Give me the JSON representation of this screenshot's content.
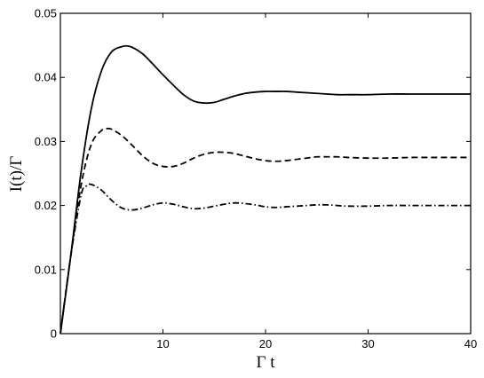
{
  "chart_data": {
    "type": "line",
    "xlabel": "Γ t",
    "ylabel": "I(t)/Γ",
    "xlim": [
      0,
      40
    ],
    "ylim": [
      0,
      0.05
    ],
    "xticks": [
      "10",
      "20",
      "30",
      "40"
    ],
    "yticks": [
      "0",
      "0.01",
      "0.02",
      "0.03",
      "0.04",
      "0.05"
    ],
    "grid": false,
    "legend": "none",
    "series": [
      {
        "style": "solid",
        "x": [
          0,
          1,
          2,
          3,
          4,
          5,
          6,
          6.5,
          7,
          8,
          9,
          10,
          11,
          12,
          13,
          14,
          15,
          16,
          17,
          18,
          19,
          20,
          21,
          22,
          23,
          24,
          25,
          26,
          27,
          28,
          29,
          30,
          32,
          34,
          36,
          38,
          40
        ],
        "y": [
          0,
          0.012,
          0.025,
          0.035,
          0.041,
          0.044,
          0.0448,
          0.0449,
          0.0447,
          0.0437,
          0.0421,
          0.0404,
          0.0388,
          0.0373,
          0.0363,
          0.036,
          0.0361,
          0.0366,
          0.0371,
          0.0375,
          0.0377,
          0.0378,
          0.0378,
          0.0378,
          0.0377,
          0.0376,
          0.0375,
          0.0374,
          0.0373,
          0.0373,
          0.0373,
          0.0373,
          0.0374,
          0.0374,
          0.0374,
          0.0374,
          0.0374
        ]
      },
      {
        "style": "dashed",
        "x": [
          0,
          1,
          2,
          3,
          4,
          4.5,
          5,
          6,
          7,
          8,
          9,
          10,
          11,
          12,
          13,
          14,
          15,
          16,
          17,
          18,
          19,
          20,
          21,
          22,
          23,
          24,
          25,
          26,
          27,
          28,
          30,
          32,
          34,
          36,
          38,
          40
        ],
        "y": [
          0,
          0.012,
          0.023,
          0.0295,
          0.0317,
          0.032,
          0.0319,
          0.0309,
          0.0294,
          0.0278,
          0.0266,
          0.0261,
          0.0261,
          0.0266,
          0.0274,
          0.028,
          0.0283,
          0.0283,
          0.0281,
          0.0277,
          0.0273,
          0.027,
          0.0269,
          0.027,
          0.0272,
          0.0274,
          0.0276,
          0.0276,
          0.0276,
          0.0275,
          0.0274,
          0.0274,
          0.0275,
          0.0275,
          0.0275,
          0.0275
        ]
      },
      {
        "style": "dash-dot",
        "x": [
          0,
          1,
          2,
          2.5,
          3,
          4,
          5,
          6,
          7,
          8,
          9,
          10,
          11,
          12,
          13,
          14,
          15,
          16,
          17,
          18,
          19,
          20,
          21,
          22,
          23,
          24,
          25,
          26,
          27,
          28,
          30,
          32,
          34,
          36,
          38,
          40
        ],
        "y": [
          0,
          0.012,
          0.0215,
          0.023,
          0.0233,
          0.0224,
          0.0208,
          0.0196,
          0.0193,
          0.0196,
          0.0201,
          0.0204,
          0.0202,
          0.0198,
          0.0195,
          0.0196,
          0.0199,
          0.0202,
          0.0204,
          0.0203,
          0.0201,
          0.0198,
          0.0197,
          0.0198,
          0.0199,
          0.02,
          0.0201,
          0.0201,
          0.02,
          0.0199,
          0.0199,
          0.02,
          0.02,
          0.02,
          0.02,
          0.02
        ]
      }
    ]
  }
}
